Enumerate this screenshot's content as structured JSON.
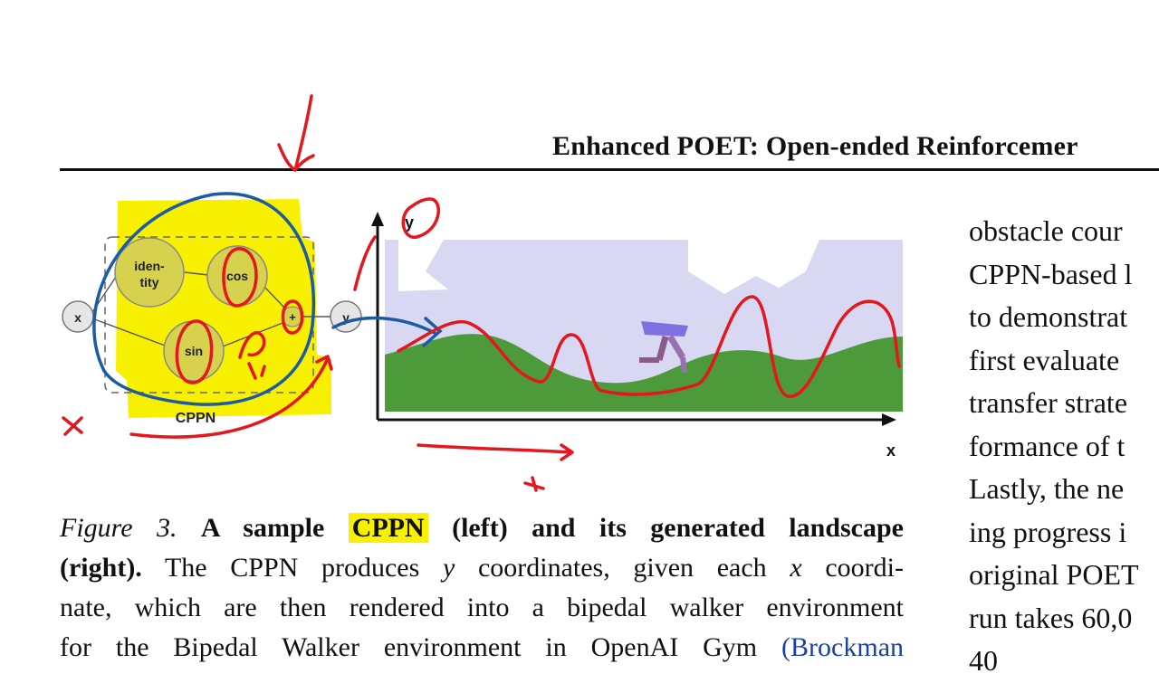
{
  "header": {
    "title": "Enhanced POET: Open-ended Reinforcemer"
  },
  "figure": {
    "cppn_label": "CPPN",
    "input_label": "x",
    "output_label": "y",
    "nodes": [
      "iden-",
      "tity",
      "cos",
      "sin",
      "+"
    ],
    "axis_y_label": "y",
    "axis_x_label": "x"
  },
  "caption": {
    "figure_number": "Figure 3.",
    "bold_a": "A sample",
    "bold_cppn": "CPPN",
    "bold_rest": "(left) and its generated landscape",
    "bold_right": "(right).",
    "line2_rest": "The CPPN produces",
    "var_y": "y",
    "line2_mid": "coordinates, given each",
    "var_x": "x",
    "line2_end": "coordi-",
    "line3": "nate, which are then rendered into a bipedal walker environment",
    "line4": "for the Bipedal Walker environment in OpenAI Gym",
    "line4_cite": "(Brockman"
  },
  "right_column": {
    "lines": [
      "obstacle cour",
      "CPPN-based l",
      "to demonstrat",
      "first evaluate",
      "transfer strate",
      "formance of t",
      "Lastly, the ne",
      "ing progress i",
      "original POET",
      "run takes 60,0",
      "40"
    ]
  },
  "annotations": {
    "ink_colors": {
      "red": "#e3171d",
      "blue": "#1c5aa6",
      "highlight": "#f7f000"
    }
  }
}
